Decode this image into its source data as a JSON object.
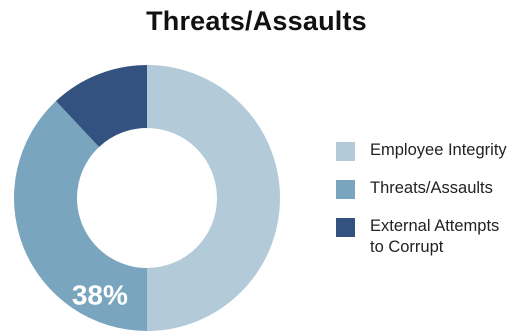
{
  "chart_data": {
    "type": "pie",
    "title": "Threats/Assaults",
    "categories": [
      "Employee Integrity",
      "Threats/Assaults",
      "External Attempts to Corrupt"
    ],
    "values": [
      50,
      38,
      12
    ],
    "data_labels": [
      null,
      "38%",
      null
    ],
    "donut": true,
    "legend_position": "right",
    "colors": [
      "#b3cad9",
      "#79a6be",
      "#33527f"
    ],
    "legend": [
      {
        "lines": [
          "Employee Integrity"
        ]
      },
      {
        "lines": [
          "Threats/Assaults"
        ]
      },
      {
        "lines": [
          "External Attempts",
          "to Corrupt"
        ]
      }
    ]
  }
}
